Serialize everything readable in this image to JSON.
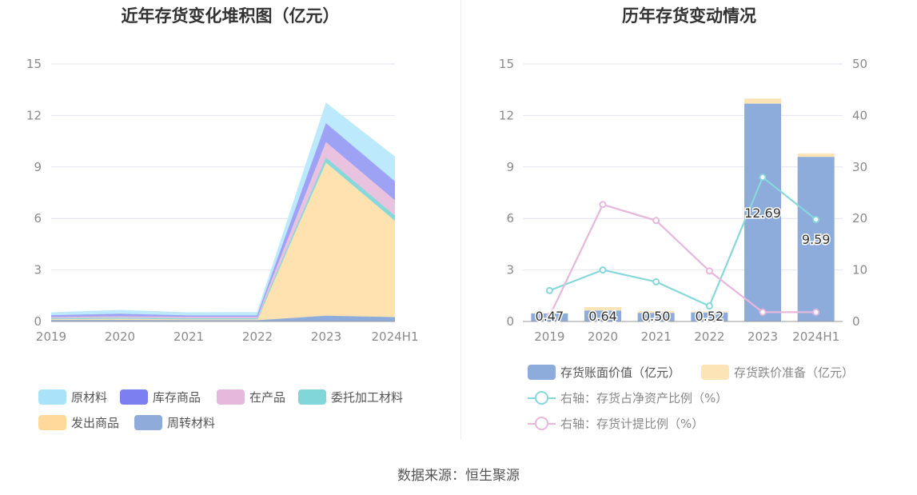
{
  "source_text": "数据来源：恒生聚源",
  "chart_data": [
    {
      "type": "area",
      "stacked": true,
      "title": "近年存货变化堆积图（亿元）",
      "categories": [
        "2019",
        "2020",
        "2021",
        "2022",
        "2023",
        "2024H1"
      ],
      "ylim": [
        0,
        15
      ],
      "yticks": [
        "0",
        "3",
        "6",
        "9",
        "12",
        "15"
      ],
      "grid": true,
      "legend_position": "bottom",
      "series": [
        {
          "name": "周转材料",
          "color": "#8dabdb",
          "values": [
            0.05,
            0.05,
            0.04,
            0.04,
            0.3,
            0.22
          ]
        },
        {
          "name": "发出商品",
          "color": "#ffe2b0",
          "values": [
            0.1,
            0.12,
            0.1,
            0.1,
            8.9,
            5.6
          ]
        },
        {
          "name": "委托加工材料",
          "color": "#86d8da",
          "values": [
            0.02,
            0.02,
            0.02,
            0.02,
            0.3,
            0.3
          ]
        },
        {
          "name": "在产品",
          "color": "#e9c2e0",
          "values": [
            0.06,
            0.08,
            0.08,
            0.08,
            0.9,
            0.9
          ]
        },
        {
          "name": "库存商品",
          "color": "#9ea2f4",
          "values": [
            0.1,
            0.15,
            0.08,
            0.08,
            1.1,
            1.1
          ]
        },
        {
          "name": "原材料",
          "color": "#bce9fb",
          "values": [
            0.17,
            0.22,
            0.18,
            0.2,
            1.2,
            1.45
          ]
        }
      ],
      "legend_order": [
        "原材料",
        "库存商品",
        "在产品",
        "委托加工材料",
        "发出商品",
        "周转材料"
      ],
      "legend_colors": {
        "原材料": "#a9e2f9",
        "库存商品": "#7b7ff0",
        "在产品": "#e6b8dc",
        "委托加工材料": "#80d6d8",
        "发出商品": "#ffd99b",
        "周转材料": "#8eabd9"
      }
    },
    {
      "type": "bar",
      "title": "历年存货变动情况",
      "categories": [
        "2019",
        "2020",
        "2021",
        "2022",
        "2023",
        "2024H1"
      ],
      "ylim": [
        0,
        15
      ],
      "yticks": [
        "0",
        "3",
        "6",
        "9",
        "12",
        "15"
      ],
      "y2lim": [
        0,
        50
      ],
      "y2ticks": [
        "0",
        "10",
        "20",
        "30",
        "40",
        "50"
      ],
      "grid": true,
      "legend_position": "bottom",
      "bar_series": [
        {
          "name": "存货账面价值（亿元）",
          "color": "#8dabdb",
          "values": [
            0.47,
            0.64,
            0.5,
            0.52,
            12.69,
            9.59
          ]
        },
        {
          "name": "存货跌价准备（亿元）",
          "color": "#fde4b6",
          "values": [
            0.02,
            0.2,
            0.1,
            0.06,
            0.3,
            0.2
          ]
        }
      ],
      "bar_labels": [
        "0.47",
        "0.64",
        "0.50",
        "0.52",
        "12.69",
        "9.59"
      ],
      "line_series": [
        {
          "name": "右轴：存货占净资产比例（%）",
          "color": "#86d8da",
          "values": [
            6.0,
            10.0,
            7.7,
            3.0,
            28.0,
            19.8
          ]
        },
        {
          "name": "右轴：存货计提比例（%）",
          "color": "#e6b8dc",
          "values": [
            1.0,
            22.7,
            19.6,
            9.8,
            1.8,
            1.8
          ]
        }
      ]
    }
  ]
}
